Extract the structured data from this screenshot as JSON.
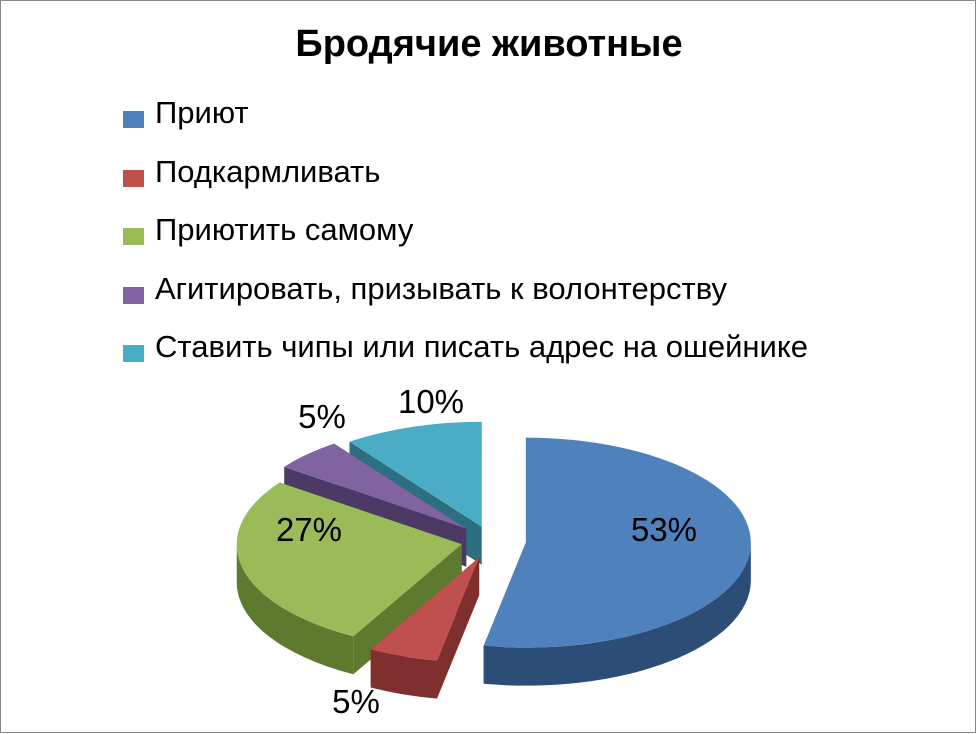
{
  "chart_data": {
    "type": "pie",
    "title": "Бродячие животные",
    "legend_position": "top",
    "categories": [
      "Приют",
      "Подкармливать",
      "Приютить самому",
      "Агитировать, призывать к волонтерству",
      "Ставить чипы или писать адрес на ошейнике"
    ],
    "values": [
      53,
      5,
      27,
      5,
      10
    ],
    "data_labels": [
      "53%",
      "5%",
      "27%",
      "5%",
      "10%"
    ],
    "colors": [
      "#4F81BD",
      "#C0504D",
      "#9BBB59",
      "#8064A2",
      "#4BACC6"
    ],
    "side_colors": [
      "#2C4D75",
      "#7F2F2D",
      "#5E7A2E",
      "#4B3A65",
      "#2B6F80"
    ],
    "exploded": true,
    "style": "3d"
  }
}
